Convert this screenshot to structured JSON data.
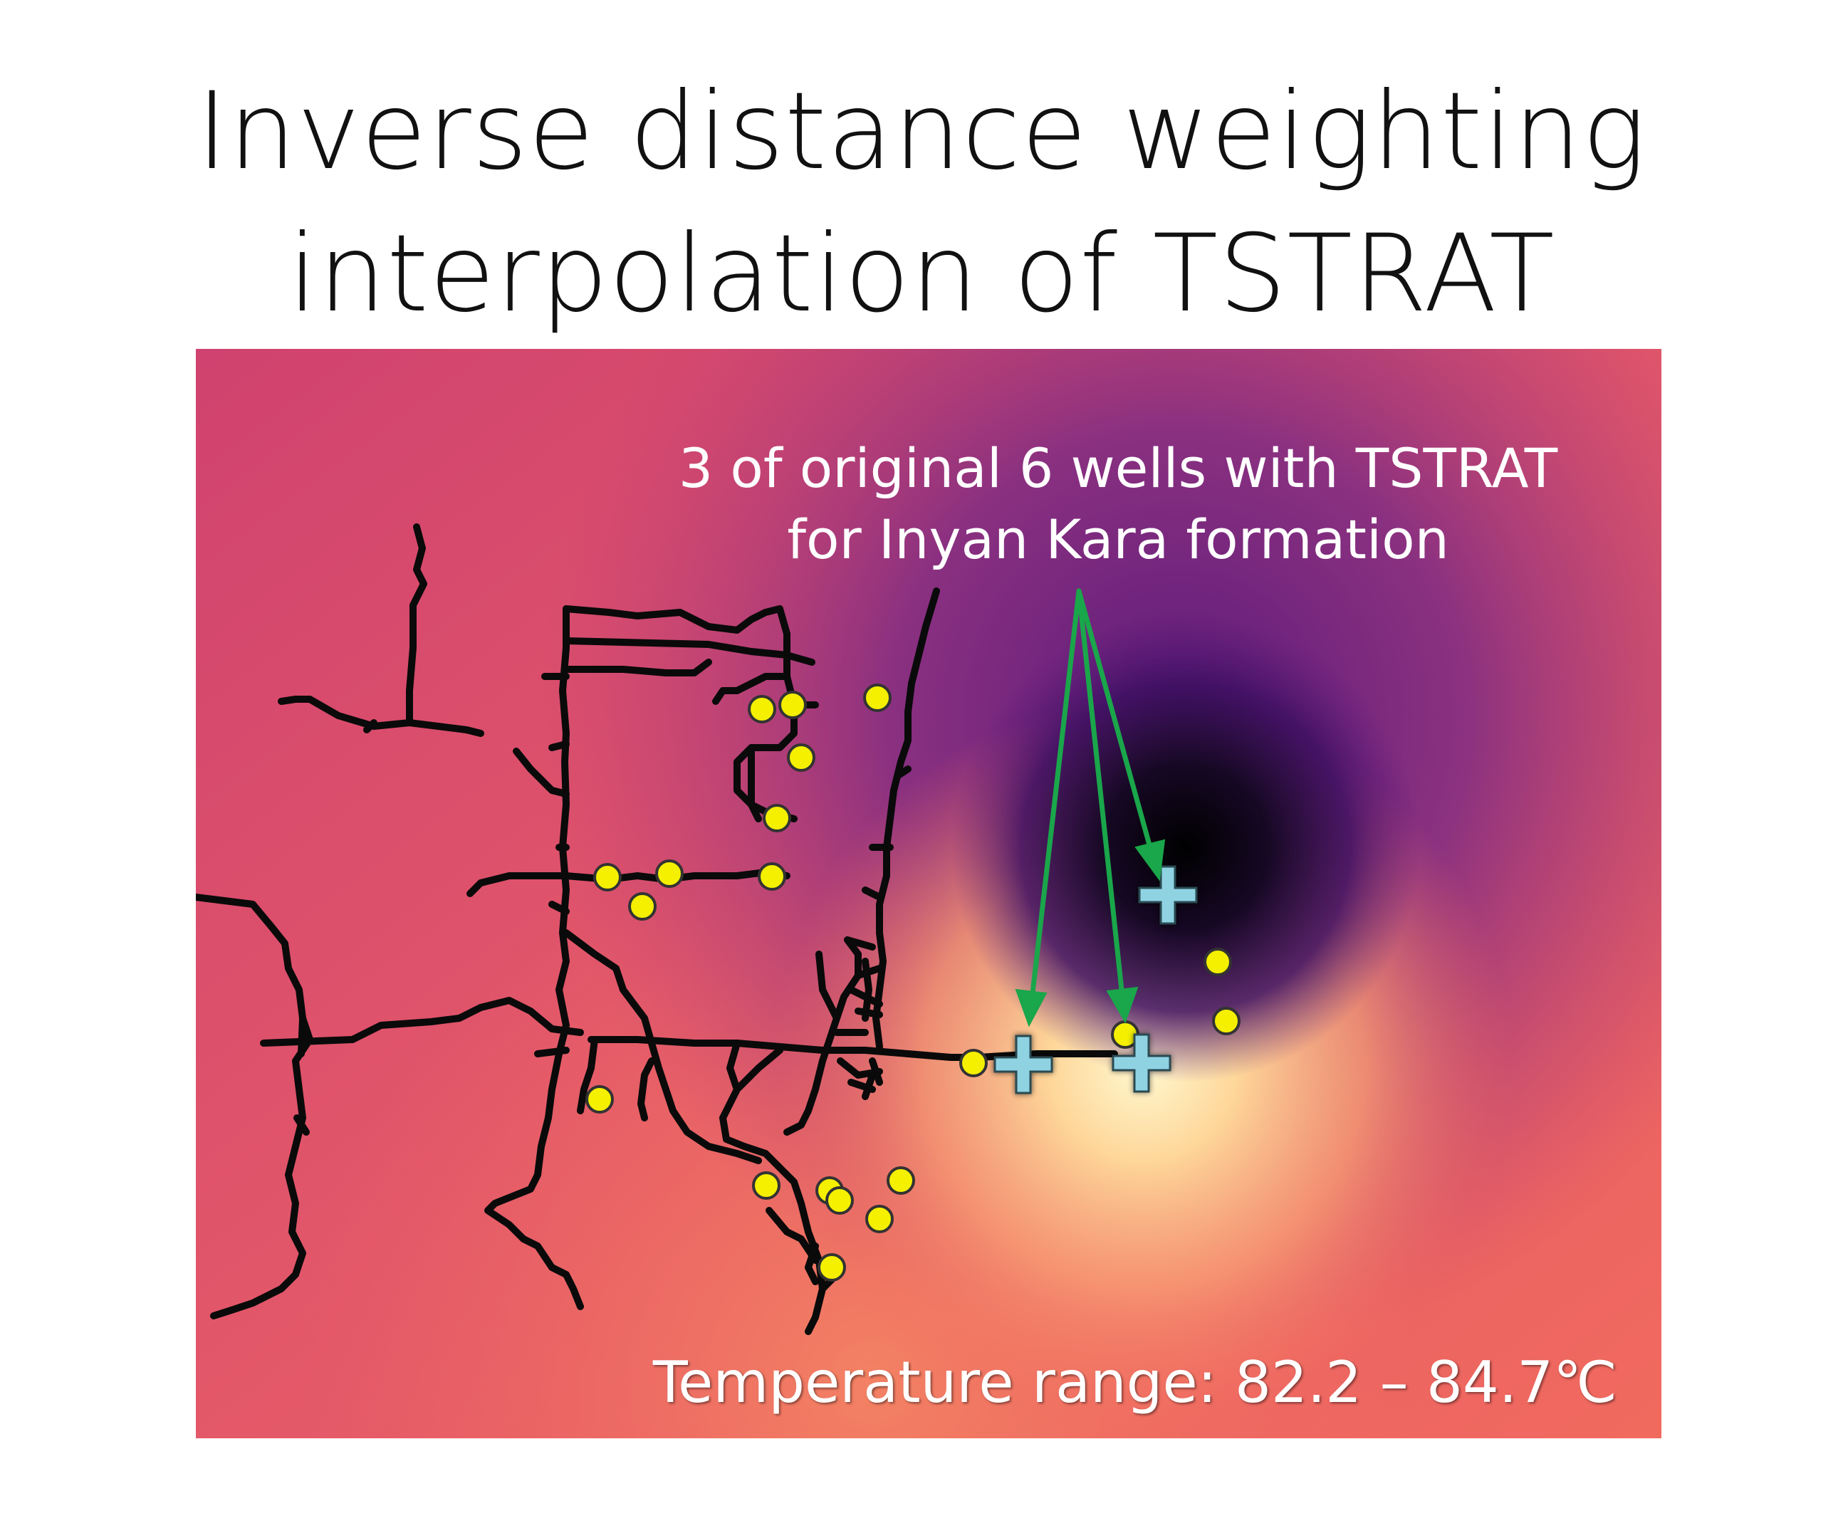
{
  "title": {
    "line1": "Inverse distance weighting",
    "line2": "interpolation of TSTRAT"
  },
  "map": {
    "annotation": {
      "line1": "3 of original 6 wells with TSTRAT",
      "line2": "for Inyan Kara formation"
    },
    "range_label": "Temperature range: 82.2 – 84.7℃",
    "colors": {
      "background_warm": "#e7556d",
      "cold_core": "#050007",
      "hot_core": "#fff3c4",
      "roads": "#0a0a0a",
      "wells": "#f4f000",
      "tstrat_markers": "#8fd0e0",
      "arrows": "#1aa64a"
    },
    "legend": {
      "yellow_dots": "well locations",
      "cyan_crosses": "wells with TSTRAT"
    }
  }
}
